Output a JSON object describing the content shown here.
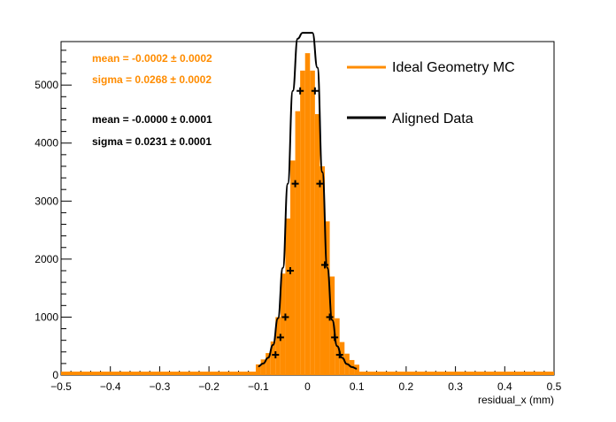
{
  "chart_data": {
    "type": "histogram",
    "xlabel": "residual_x (mm)",
    "xlim": [
      -0.5,
      0.5
    ],
    "ylim": [
      0,
      5750
    ],
    "xticks": [
      -0.5,
      -0.4,
      -0.3,
      -0.2,
      -0.1,
      0,
      0.1,
      0.2,
      0.3,
      0.4,
      0.5
    ],
    "xtick_labels": [
      "−0.5",
      "−0.4",
      "−0.3",
      "−0.2",
      "−0.1",
      "0",
      "0.1",
      "0.2",
      "0.3",
      "0.4",
      "0.5"
    ],
    "yticks": [
      0,
      1000,
      2000,
      3000,
      4000,
      5000
    ],
    "ytick_labels": [
      "0",
      "1000",
      "2000",
      "3000",
      "4000",
      "5000"
    ],
    "bin_width": 0.01,
    "legend_position": "top-right",
    "series": [
      {
        "name": "Ideal Geometry MC",
        "style": "filled-histogram",
        "color": "#ff8c00",
        "stats": [
          "mean = -0.0002 ± 0.0002",
          "sigma = 0.0268 ± 0.0002"
        ],
        "bins_center": [
          -0.1,
          -0.09,
          -0.08,
          -0.07,
          -0.06,
          -0.05,
          -0.04,
          -0.03,
          -0.02,
          -0.01,
          0.0,
          0.01,
          0.02,
          0.03,
          0.04,
          0.05,
          0.06,
          0.07,
          0.08,
          0.09,
          0.1
        ],
        "values": [
          185,
          270,
          380,
          580,
          1000,
          1750,
          2700,
          3700,
          4550,
          5250,
          5550,
          5250,
          4500,
          3600,
          2650,
          1700,
          980,
          570,
          370,
          260,
          180
        ],
        "baseline_value": 60
      },
      {
        "name": "Aligned Data",
        "style": "markers-with-fit-line",
        "color": "#000000",
        "stats": [
          "mean = -0.0000 ± 0.0001",
          "sigma = 0.0231 ± 0.0001"
        ],
        "x": [
          -0.1,
          -0.09,
          -0.08,
          -0.07,
          -0.06,
          -0.05,
          -0.04,
          -0.03,
          -0.02,
          -0.01,
          0.0,
          0.01,
          0.02,
          0.03,
          0.04,
          0.05,
          0.06,
          0.07,
          0.08,
          0.09,
          0.1
        ],
        "y": [
          150,
          200,
          300,
          520,
          980,
          1850,
          3300,
          4900,
          5800,
          5900,
          5900,
          5900,
          5300,
          3500,
          1850,
          950,
          500,
          300,
          190,
          140,
          110
        ],
        "markers": [
          {
            "x": -0.065,
            "y": 350
          },
          {
            "x": -0.055,
            "y": 650
          },
          {
            "x": -0.045,
            "y": 1000
          },
          {
            "x": -0.035,
            "y": 1800
          },
          {
            "x": -0.025,
            "y": 3300
          },
          {
            "x": -0.015,
            "y": 4900
          },
          {
            "x": 0.015,
            "y": 4900
          },
          {
            "x": 0.025,
            "y": 3300
          },
          {
            "x": 0.035,
            "y": 1900
          },
          {
            "x": 0.045,
            "y": 1000
          },
          {
            "x": 0.055,
            "y": 650
          },
          {
            "x": 0.065,
            "y": 350
          }
        ]
      }
    ]
  }
}
